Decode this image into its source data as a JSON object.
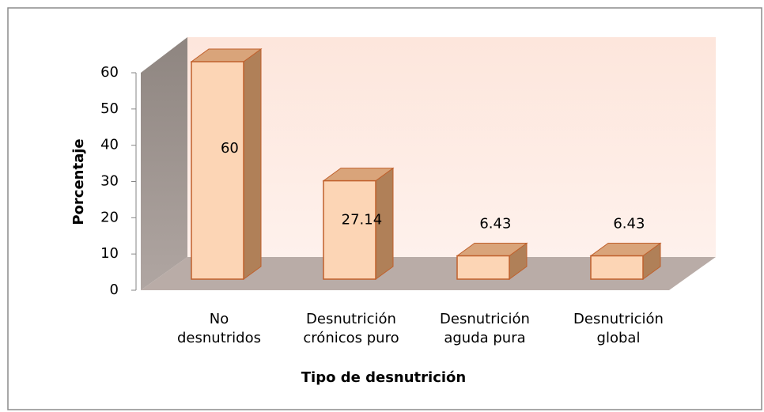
{
  "chart_data": {
    "type": "bar3d",
    "xlabel": "Tipo de desnutrición",
    "ylabel": "Porcentaje",
    "categories": [
      "No\ndesnutridos",
      "Desnutrición\ncrónicos puro",
      "Desnutrición\naguda pura",
      "Desnutrición\nglobal"
    ],
    "values": [
      60,
      27.14,
      6.43,
      6.43
    ],
    "color": "#fcd5b5",
    "ylim": [
      0,
      60
    ],
    "yticks": [
      0,
      10,
      20,
      30,
      40,
      50,
      60
    ]
  }
}
